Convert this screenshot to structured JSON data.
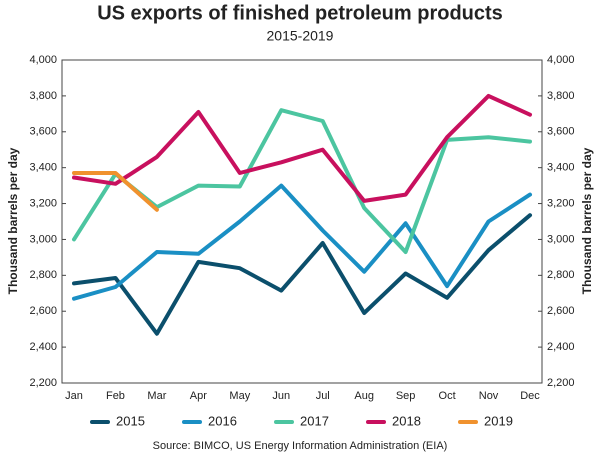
{
  "chart_data": {
    "type": "line",
    "title": "US exports of finished petroleum products",
    "subtitle": "2015-2019",
    "y_label": "Thousand barrels per day",
    "source": "Source: BIMCO, US Energy Information Administration (EIA)",
    "categories": [
      "Jan",
      "Feb",
      "Mar",
      "Apr",
      "May",
      "Jun",
      "Jul",
      "Aug",
      "Sep",
      "Oct",
      "Nov",
      "Dec"
    ],
    "ylim": [
      2200,
      4000
    ],
    "yticks": [
      {
        "value": 2200,
        "label": "2,200"
      },
      {
        "value": 2400,
        "label": "2,400"
      },
      {
        "value": 2600,
        "label": "2,600"
      },
      {
        "value": 2800,
        "label": "2,800"
      },
      {
        "value": 3000,
        "label": "3,000"
      },
      {
        "value": 3200,
        "label": "3,200"
      },
      {
        "value": 3400,
        "label": "3,400"
      },
      {
        "value": 3600,
        "label": "3,600"
      },
      {
        "value": 3800,
        "label": "3,800"
      },
      {
        "value": 4000,
        "label": "4,000"
      }
    ],
    "grid": false,
    "legend": "bottom",
    "series": [
      {
        "name": "2015",
        "color": "#0b4f6c",
        "values": [
          2755,
          2785,
          2475,
          2875,
          2840,
          2715,
          2980,
          2590,
          2810,
          2675,
          2940,
          3135
        ]
      },
      {
        "name": "2016",
        "color": "#1a8fc4",
        "values": [
          2670,
          2735,
          2930,
          2920,
          3100,
          3300,
          3050,
          2820,
          3090,
          2740,
          3100,
          3250
        ]
      },
      {
        "name": "2017",
        "color": "#4cc5a0",
        "values": [
          3000,
          3365,
          3180,
          3300,
          3295,
          3720,
          3660,
          3175,
          2930,
          3555,
          3570,
          3545
        ]
      },
      {
        "name": "2018",
        "color": "#c8105e",
        "values": [
          3345,
          3310,
          3460,
          3710,
          3370,
          3430,
          3500,
          3215,
          3250,
          3570,
          3800,
          3695
        ]
      },
      {
        "name": "2019",
        "color": "#f0922e",
        "values": [
          3370,
          3370,
          3165,
          null,
          null,
          null,
          null,
          null,
          null,
          null,
          null,
          null
        ]
      }
    ]
  }
}
